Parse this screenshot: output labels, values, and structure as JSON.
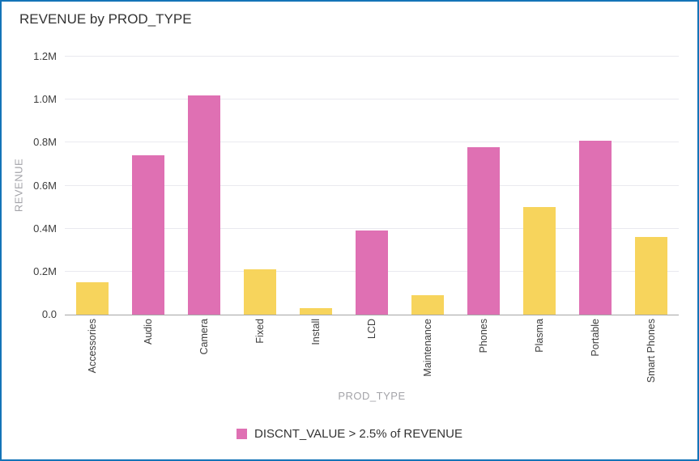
{
  "title": "REVENUE by PROD_TYPE",
  "colors": {
    "highlight_pink": "#df70b3",
    "normal_yellow": "#f7d45c",
    "card_border": "#1474b8",
    "gridline": "#e9e9ef",
    "axis_line": "#a6a6a6",
    "axis_title_text": "#a3a3a8",
    "tick_label_text": "#3d3d3d"
  },
  "chart_data": {
    "type": "bar",
    "title": "REVENUE by PROD_TYPE",
    "xlabel": "PROD_TYPE",
    "ylabel": "REVENUE",
    "categories": [
      "Accessories",
      "Audio",
      "Camera",
      "Fixed",
      "Install",
      "LCD",
      "Maintenance",
      "Phones",
      "Plasma",
      "Portable",
      "Smart Phones"
    ],
    "values_millions": [
      0.15,
      0.74,
      1.02,
      0.21,
      0.03,
      0.39,
      0.09,
      0.78,
      0.5,
      0.81,
      0.36
    ],
    "highlighted": [
      false,
      true,
      true,
      false,
      false,
      true,
      false,
      true,
      false,
      true,
      false
    ],
    "ylim": [
      0,
      1.2
    ],
    "ytick_values": [
      0,
      0.2,
      0.4,
      0.6,
      0.8,
      1.0,
      1.2
    ],
    "ytick_labels": [
      "0.0",
      "0.2M",
      "0.4M",
      "0.6M",
      "0.8M",
      "1.0M",
      "1.2M"
    ],
    "grid": true,
    "legend": {
      "label": "DISCNT_VALUE > 2.5% of REVENUE",
      "position": "bottom"
    }
  }
}
